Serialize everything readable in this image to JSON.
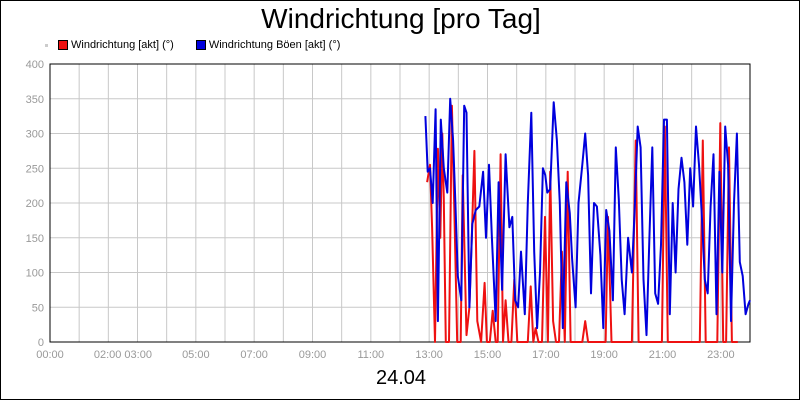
{
  "title": "Windrichtung [pro Tag]",
  "date_label": "24.04",
  "colors": {
    "series1": "#ee1111",
    "series2": "#0000dd",
    "grid": "#c8c8c8",
    "tick_text": "#999999"
  },
  "chart_data": {
    "type": "line",
    "title": "Windrichtung [pro Tag]",
    "xlabel": "24.04",
    "ylabel": "",
    "ylim": [
      0,
      400
    ],
    "xlim": [
      0,
      24
    ],
    "grid": true,
    "legend_position": "top-left",
    "y_ticks": [
      "0",
      "50",
      "100",
      "150",
      "200",
      "250",
      "300",
      "350",
      "400"
    ],
    "x_tick_labels": [
      {
        "x": 0,
        "label": "00:00"
      },
      {
        "x": 2.5,
        "label": "02:00 03:00"
      },
      {
        "x": 5,
        "label": "05:00"
      },
      {
        "x": 7,
        "label": "07:00"
      },
      {
        "x": 9,
        "label": "09:00"
      },
      {
        "x": 11,
        "label": "11:00"
      },
      {
        "x": 13,
        "label": "13:00"
      },
      {
        "x": 15,
        "label": "15:00"
      },
      {
        "x": 17,
        "label": "17:00"
      },
      {
        "x": 19,
        "label": "19:00"
      },
      {
        "x": 21,
        "label": "21:00"
      },
      {
        "x": 23,
        "label": "23:00"
      }
    ],
    "series": [
      {
        "name": "Windrichtung [akt] (°)",
        "color": "#ee1111",
        "points": [
          [
            12.93,
            230
          ],
          [
            13.03,
            255
          ],
          [
            13.1,
            165
          ],
          [
            13.2,
            0
          ],
          [
            13.3,
            278
          ],
          [
            13.38,
            150
          ],
          [
            13.45,
            300
          ],
          [
            13.5,
            205
          ],
          [
            13.57,
            0
          ],
          [
            13.68,
            0
          ],
          [
            13.78,
            340
          ],
          [
            13.88,
            160
          ],
          [
            13.96,
            0
          ],
          [
            14.08,
            0
          ],
          [
            14.15,
            240
          ],
          [
            14.28,
            10
          ],
          [
            14.38,
            50
          ],
          [
            14.47,
            160
          ],
          [
            14.55,
            275
          ],
          [
            14.65,
            30
          ],
          [
            14.78,
            0
          ],
          [
            14.9,
            85
          ],
          [
            14.98,
            0
          ],
          [
            15.08,
            0
          ],
          [
            15.18,
            45
          ],
          [
            15.28,
            0
          ],
          [
            15.35,
            0
          ],
          [
            15.45,
            270
          ],
          [
            15.53,
            0
          ],
          [
            15.62,
            60
          ],
          [
            15.72,
            0
          ],
          [
            15.82,
            0
          ],
          [
            15.92,
            90
          ],
          [
            16.02,
            0
          ],
          [
            16.15,
            0
          ],
          [
            16.25,
            0
          ],
          [
            16.38,
            0
          ],
          [
            16.48,
            80
          ],
          [
            16.57,
            0
          ],
          [
            16.65,
            20
          ],
          [
            16.75,
            0
          ],
          [
            16.87,
            0
          ],
          [
            16.97,
            180
          ],
          [
            17.07,
            0
          ],
          [
            17.15,
            245
          ],
          [
            17.25,
            30
          ],
          [
            17.35,
            0
          ],
          [
            17.45,
            0
          ],
          [
            17.55,
            130
          ],
          [
            17.65,
            0
          ],
          [
            17.75,
            245
          ],
          [
            17.85,
            0
          ],
          [
            17.95,
            0
          ],
          [
            18.05,
            0
          ],
          [
            18.15,
            0
          ],
          [
            18.25,
            0
          ],
          [
            18.35,
            30
          ],
          [
            18.45,
            0
          ],
          [
            18.55,
            0
          ],
          [
            18.65,
            0
          ],
          [
            18.75,
            0
          ],
          [
            18.85,
            0
          ],
          [
            18.95,
            0
          ],
          [
            19.05,
            0
          ],
          [
            19.13,
            180
          ],
          [
            19.25,
            0
          ],
          [
            19.35,
            0
          ],
          [
            19.45,
            0
          ],
          [
            19.55,
            0
          ],
          [
            19.65,
            0
          ],
          [
            19.75,
            0
          ],
          [
            19.85,
            0
          ],
          [
            19.95,
            0
          ],
          [
            20.08,
            290
          ],
          [
            20.18,
            0
          ],
          [
            20.28,
            0
          ],
          [
            20.38,
            0
          ],
          [
            20.48,
            0
          ],
          [
            20.58,
            0
          ],
          [
            20.68,
            0
          ],
          [
            20.78,
            0
          ],
          [
            20.88,
            0
          ],
          [
            20.98,
            0
          ],
          [
            21.08,
            310
          ],
          [
            21.18,
            0
          ],
          [
            21.28,
            0
          ],
          [
            21.38,
            0
          ],
          [
            21.48,
            0
          ],
          [
            21.58,
            0
          ],
          [
            21.68,
            0
          ],
          [
            21.78,
            0
          ],
          [
            21.88,
            0
          ],
          [
            21.98,
            0
          ],
          [
            22.08,
            0
          ],
          [
            22.18,
            0
          ],
          [
            22.28,
            0
          ],
          [
            22.38,
            290
          ],
          [
            22.48,
            0
          ],
          [
            22.58,
            0
          ],
          [
            22.68,
            0
          ],
          [
            22.78,
            0
          ],
          [
            22.88,
            0
          ],
          [
            22.98,
            315
          ],
          [
            23.08,
            0
          ],
          [
            23.18,
            0
          ],
          [
            23.28,
            280
          ],
          [
            23.38,
            0
          ],
          [
            23.48,
            0
          ],
          [
            23.58,
            0
          ]
        ]
      },
      {
        "name": "Windrichtung Böen [akt] (°)",
        "color": "#0000dd",
        "points": [
          [
            12.87,
            325
          ],
          [
            12.95,
            245
          ],
          [
            13.03,
            250
          ],
          [
            13.12,
            200
          ],
          [
            13.22,
            335
          ],
          [
            13.3,
            30
          ],
          [
            13.4,
            320
          ],
          [
            13.5,
            250
          ],
          [
            13.62,
            215
          ],
          [
            13.72,
            350
          ],
          [
            13.82,
            290
          ],
          [
            13.9,
            200
          ],
          [
            13.98,
            95
          ],
          [
            14.1,
            60
          ],
          [
            14.2,
            340
          ],
          [
            14.28,
            330
          ],
          [
            14.38,
            50
          ],
          [
            14.48,
            170
          ],
          [
            14.6,
            190
          ],
          [
            14.72,
            195
          ],
          [
            14.85,
            245
          ],
          [
            14.95,
            150
          ],
          [
            15.05,
            255
          ],
          [
            15.15,
            150
          ],
          [
            15.28,
            30
          ],
          [
            15.38,
            230
          ],
          [
            15.5,
            75
          ],
          [
            15.62,
            270
          ],
          [
            15.75,
            165
          ],
          [
            15.85,
            180
          ],
          [
            15.95,
            60
          ],
          [
            16.05,
            50
          ],
          [
            16.15,
            130
          ],
          [
            16.28,
            40
          ],
          [
            16.38,
            200
          ],
          [
            16.5,
            330
          ],
          [
            16.6,
            130
          ],
          [
            16.7,
            20
          ],
          [
            16.8,
            100
          ],
          [
            16.9,
            250
          ],
          [
            16.98,
            240
          ],
          [
            17.05,
            215
          ],
          [
            17.15,
            220
          ],
          [
            17.27,
            345
          ],
          [
            17.38,
            290
          ],
          [
            17.48,
            200
          ],
          [
            17.58,
            20
          ],
          [
            17.7,
            230
          ],
          [
            17.82,
            185
          ],
          [
            17.9,
            120
          ],
          [
            18.02,
            50
          ],
          [
            18.12,
            200
          ],
          [
            18.25,
            255
          ],
          [
            18.35,
            300
          ],
          [
            18.45,
            240
          ],
          [
            18.55,
            70
          ],
          [
            18.65,
            200
          ],
          [
            18.75,
            195
          ],
          [
            18.87,
            125
          ],
          [
            18.97,
            20
          ],
          [
            19.07,
            190
          ],
          [
            19.18,
            160
          ],
          [
            19.3,
            60
          ],
          [
            19.4,
            280
          ],
          [
            19.5,
            205
          ],
          [
            19.6,
            90
          ],
          [
            19.7,
            40
          ],
          [
            19.82,
            150
          ],
          [
            19.95,
            100
          ],
          [
            20.05,
            195
          ],
          [
            20.15,
            310
          ],
          [
            20.25,
            280
          ],
          [
            20.35,
            90
          ],
          [
            20.45,
            10
          ],
          [
            20.55,
            150
          ],
          [
            20.65,
            280
          ],
          [
            20.75,
            70
          ],
          [
            20.85,
            55
          ],
          [
            20.95,
            140
          ],
          [
            21.05,
            320
          ],
          [
            21.15,
            320
          ],
          [
            21.25,
            40
          ],
          [
            21.35,
            200
          ],
          [
            21.45,
            100
          ],
          [
            21.55,
            220
          ],
          [
            21.65,
            265
          ],
          [
            21.75,
            230
          ],
          [
            21.85,
            140
          ],
          [
            21.95,
            250
          ],
          [
            22.05,
            195
          ],
          [
            22.15,
            310
          ],
          [
            22.25,
            255
          ],
          [
            22.35,
            180
          ],
          [
            22.45,
            90
          ],
          [
            22.55,
            70
          ],
          [
            22.65,
            195
          ],
          [
            22.75,
            270
          ],
          [
            22.85,
            40
          ],
          [
            22.95,
            245
          ],
          [
            23.05,
            100
          ],
          [
            23.15,
            310
          ],
          [
            23.25,
            255
          ],
          [
            23.35,
            30
          ],
          [
            23.45,
            200
          ],
          [
            23.55,
            300
          ],
          [
            23.65,
            115
          ],
          [
            23.75,
            95
          ],
          [
            23.85,
            40
          ],
          [
            23.95,
            55
          ],
          [
            24.0,
            60
          ]
        ]
      }
    ]
  }
}
